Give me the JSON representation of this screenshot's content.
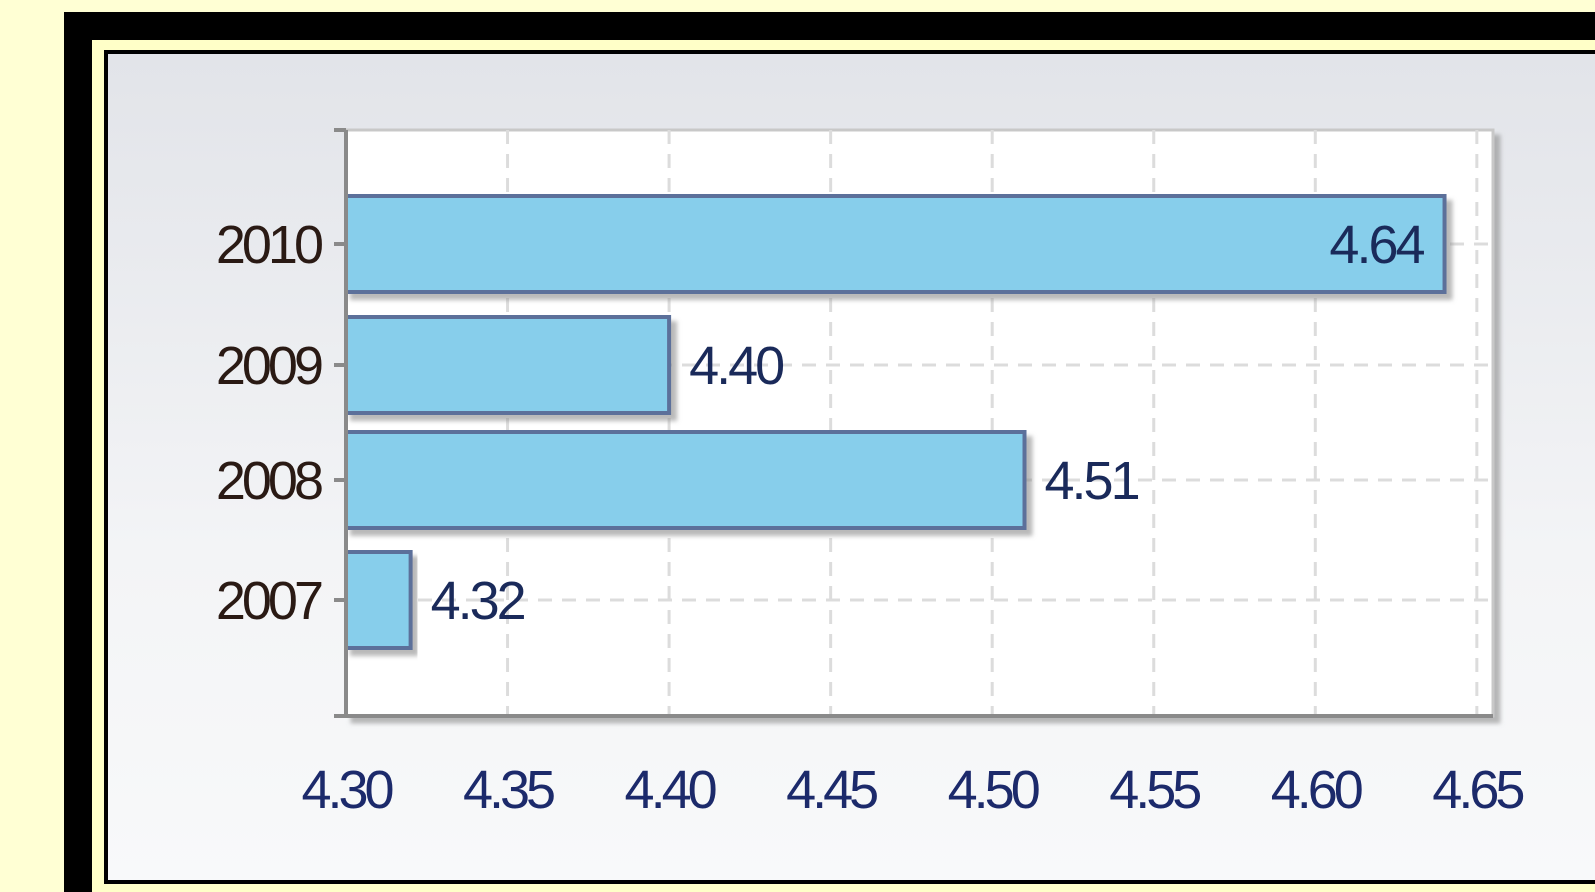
{
  "chart_data": {
    "type": "bar",
    "orientation": "horizontal",
    "categories": [
      "2010",
      "2009",
      "2008",
      "2007"
    ],
    "values": [
      4.64,
      4.4,
      4.51,
      4.32
    ],
    "data_labels": [
      "4.64",
      "4.40",
      "4.51",
      "4.32"
    ],
    "x_ticks": [
      "4.30",
      "4.35",
      "4.40",
      "4.45",
      "4.50",
      "4.55",
      "4.60",
      "4.65"
    ],
    "x_tick_values": [
      4.3,
      4.35,
      4.4,
      4.45,
      4.5,
      4.55,
      4.6,
      4.65
    ],
    "xlim": [
      4.3,
      4.655
    ],
    "grid": true,
    "colors": {
      "bar_fill": "#87ceeb",
      "bar_stroke": "#5b6f9a",
      "grid": "#dcdcdc",
      "axis": "#8a8a8a"
    }
  }
}
